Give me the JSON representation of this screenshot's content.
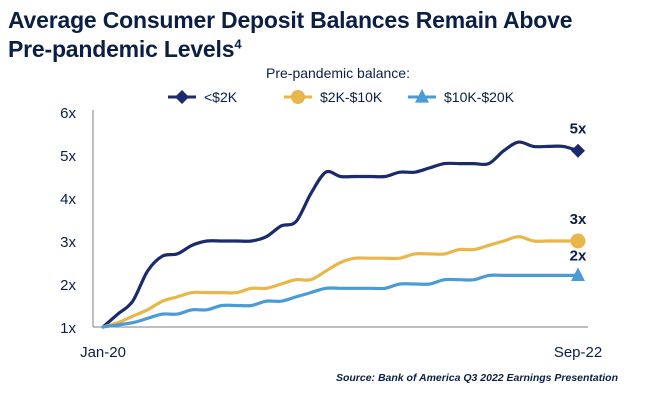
{
  "title_line1": "Average Consumer Deposit Balances Remain Above",
  "title_line2": "Pre-pandemic Levels",
  "title_footnote": "4",
  "source": "Source: Bank of America Q3 2022 Earnings Presentation",
  "colors": {
    "text": "#0b1f44",
    "axis": "#7f7f7f",
    "series_lt2k": "#1b2a6b",
    "series_2k_10k": "#e8b64a",
    "series_10k_20k": "#4a9bd6"
  },
  "chart_data": {
    "type": "line",
    "legend_title": "Pre-pandemic balance:",
    "legend_position": "top",
    "x_tick_labels": [
      "Jan-20",
      "Sep-22"
    ],
    "x_range": [
      "Jan-20",
      "Sep-22"
    ],
    "y_tick_labels": [
      "1x",
      "2x",
      "3x",
      "4x",
      "5x",
      "6x"
    ],
    "ylim": [
      1,
      6
    ],
    "grid": false,
    "series": [
      {
        "name": "<$2K",
        "color": "#1b2a6b",
        "marker": "diamond",
        "end_label": "5x",
        "points": [
          [
            "2020-01",
            1.0
          ],
          [
            "2020-02",
            1.3
          ],
          [
            "2020-03",
            1.6
          ],
          [
            "2020-04",
            2.3
          ],
          [
            "2020-05",
            2.65
          ],
          [
            "2020-06",
            2.7
          ],
          [
            "2020-07",
            2.9
          ],
          [
            "2020-08",
            3.0
          ],
          [
            "2020-09",
            3.0
          ],
          [
            "2020-10",
            3.0
          ],
          [
            "2020-11",
            3.0
          ],
          [
            "2020-12",
            3.1
          ],
          [
            "2021-01",
            3.35
          ],
          [
            "2021-02",
            3.45
          ],
          [
            "2021-03",
            4.1
          ],
          [
            "2021-04",
            4.6
          ],
          [
            "2021-05",
            4.5
          ],
          [
            "2021-06",
            4.5
          ],
          [
            "2021-07",
            4.5
          ],
          [
            "2021-08",
            4.5
          ],
          [
            "2021-09",
            4.6
          ],
          [
            "2021-10",
            4.6
          ],
          [
            "2021-11",
            4.7
          ],
          [
            "2021-12",
            4.8
          ],
          [
            "2022-01",
            4.8
          ],
          [
            "2022-02",
            4.8
          ],
          [
            "2022-03",
            4.8
          ],
          [
            "2022-04",
            5.1
          ],
          [
            "2022-05",
            5.3
          ],
          [
            "2022-06",
            5.2
          ],
          [
            "2022-07",
            5.2
          ],
          [
            "2022-08",
            5.2
          ],
          [
            "2022-09",
            5.1
          ]
        ]
      },
      {
        "name": "$2K-$10K",
        "color": "#e8b64a",
        "marker": "circle",
        "end_label": "3x",
        "points": [
          [
            "2020-01",
            1.0
          ],
          [
            "2020-02",
            1.1
          ],
          [
            "2020-03",
            1.25
          ],
          [
            "2020-04",
            1.4
          ],
          [
            "2020-05",
            1.6
          ],
          [
            "2020-06",
            1.7
          ],
          [
            "2020-07",
            1.8
          ],
          [
            "2020-08",
            1.8
          ],
          [
            "2020-09",
            1.8
          ],
          [
            "2020-10",
            1.8
          ],
          [
            "2020-11",
            1.9
          ],
          [
            "2020-12",
            1.9
          ],
          [
            "2021-01",
            2.0
          ],
          [
            "2021-02",
            2.1
          ],
          [
            "2021-03",
            2.1
          ],
          [
            "2021-04",
            2.3
          ],
          [
            "2021-05",
            2.5
          ],
          [
            "2021-06",
            2.6
          ],
          [
            "2021-07",
            2.6
          ],
          [
            "2021-08",
            2.6
          ],
          [
            "2021-09",
            2.6
          ],
          [
            "2021-10",
            2.7
          ],
          [
            "2021-11",
            2.7
          ],
          [
            "2021-12",
            2.7
          ],
          [
            "2022-01",
            2.8
          ],
          [
            "2022-02",
            2.8
          ],
          [
            "2022-03",
            2.9
          ],
          [
            "2022-04",
            3.0
          ],
          [
            "2022-05",
            3.1
          ],
          [
            "2022-06",
            3.0
          ],
          [
            "2022-07",
            3.0
          ],
          [
            "2022-08",
            3.0
          ],
          [
            "2022-09",
            3.0
          ]
        ]
      },
      {
        "name": "$10K-$20K",
        "color": "#4a9bd6",
        "marker": "triangle",
        "end_label": "2x",
        "points": [
          [
            "2020-01",
            1.0
          ],
          [
            "2020-02",
            1.05
          ],
          [
            "2020-03",
            1.1
          ],
          [
            "2020-04",
            1.2
          ],
          [
            "2020-05",
            1.3
          ],
          [
            "2020-06",
            1.3
          ],
          [
            "2020-07",
            1.4
          ],
          [
            "2020-08",
            1.4
          ],
          [
            "2020-09",
            1.5
          ],
          [
            "2020-10",
            1.5
          ],
          [
            "2020-11",
            1.5
          ],
          [
            "2020-12",
            1.6
          ],
          [
            "2021-01",
            1.6
          ],
          [
            "2021-02",
            1.7
          ],
          [
            "2021-03",
            1.8
          ],
          [
            "2021-04",
            1.9
          ],
          [
            "2021-05",
            1.9
          ],
          [
            "2021-06",
            1.9
          ],
          [
            "2021-07",
            1.9
          ],
          [
            "2021-08",
            1.9
          ],
          [
            "2021-09",
            2.0
          ],
          [
            "2021-10",
            2.0
          ],
          [
            "2021-11",
            2.0
          ],
          [
            "2021-12",
            2.1
          ],
          [
            "2022-01",
            2.1
          ],
          [
            "2022-02",
            2.1
          ],
          [
            "2022-03",
            2.2
          ],
          [
            "2022-04",
            2.2
          ],
          [
            "2022-05",
            2.2
          ],
          [
            "2022-06",
            2.2
          ],
          [
            "2022-07",
            2.2
          ],
          [
            "2022-08",
            2.2
          ],
          [
            "2022-09",
            2.2
          ]
        ]
      }
    ]
  }
}
